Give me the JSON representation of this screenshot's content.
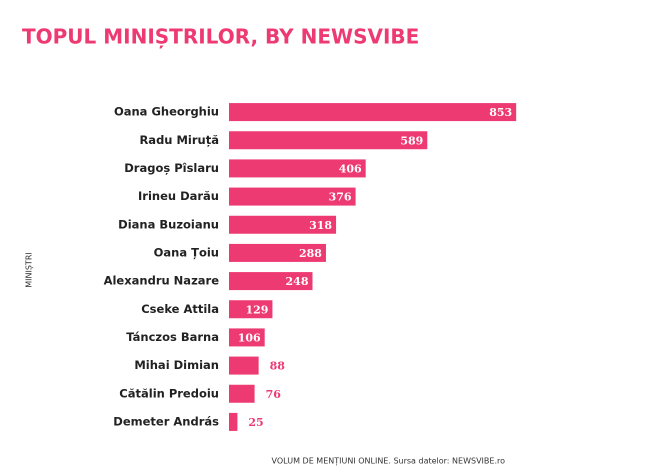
{
  "chart_data": {
    "type": "bar",
    "orientation": "horizontal",
    "title": "TOPUL MINIȘTRILOR, BY NEWSVIBE",
    "y_label": "MINIȘTRI",
    "x_label": "VOLUM DE MENȚIUNI ONLINE. Sursa datelor: NEWSVIBE.ro",
    "categories": [
      "Oana Gheorghiu",
      "Radu Miruță",
      "Dragoș Pîslaru",
      "Irineu Darău",
      "Diana Buzoianu",
      "Oana Țoiu",
      "Alexandru Nazare",
      "Cseke Attila",
      "Tánczos Barna",
      "Mihai Dimian",
      "Cătălin Predoiu",
      "Demeter András"
    ],
    "values": [
      853,
      589,
      406,
      376,
      318,
      288,
      248,
      129,
      106,
      88,
      76,
      25
    ],
    "color": "#ee3a72",
    "xlim": [
      0,
      900
    ]
  }
}
